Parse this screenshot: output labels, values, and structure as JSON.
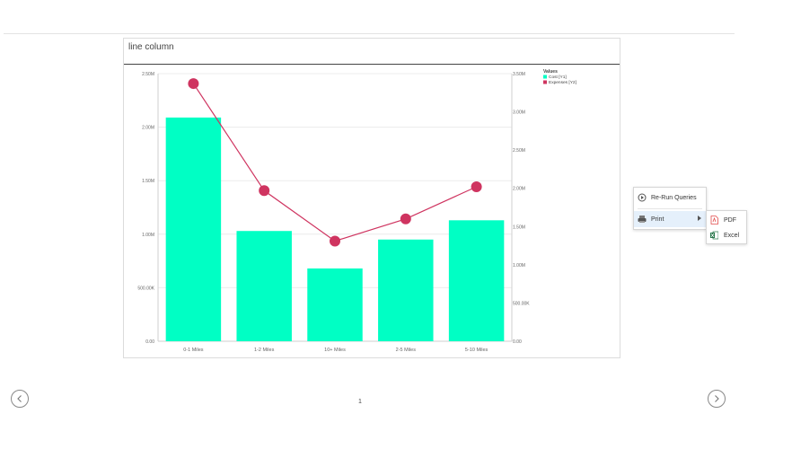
{
  "panel": {
    "title": "line column"
  },
  "menu": {
    "rerun_label": "Re-Run Queries",
    "print_label": "Print",
    "submenu": {
      "pdf_label": "PDF",
      "excel_label": "Excel"
    }
  },
  "pager": {
    "page": "1"
  },
  "colors": {
    "bar": "#00ffc4",
    "line": "#cf3460",
    "pdf": "#e24b4b",
    "excel": "#1f7244"
  },
  "chart_data": {
    "type": "bar",
    "categories": [
      "0-1 Miles",
      "1-2 Miles",
      "10+ Miles",
      "2-5 Miles",
      "5-10 Miles"
    ],
    "series": [
      {
        "name": "Cost [Y1]",
        "type": "bar",
        "axis": "left",
        "values": [
          2090000,
          1030000,
          680000,
          950000,
          1130000
        ]
      },
      {
        "name": "Expenses [Y2]",
        "type": "line",
        "axis": "right",
        "values": [
          3370000,
          1970000,
          1310000,
          1600000,
          2020000
        ]
      }
    ],
    "y_left": {
      "range": [
        0,
        2500000
      ],
      "ticks": [
        "0.00",
        "500.00K",
        "1.00M",
        "1.50M",
        "2.00M",
        "2.50M"
      ]
    },
    "y_right": {
      "range": [
        0,
        3500000
      ],
      "ticks": [
        "0.00",
        "500.00K",
        "1.00M",
        "1.50M",
        "2.00M",
        "2.50M",
        "3.00M",
        "3.50M"
      ]
    },
    "legend": {
      "title": "Values",
      "placement": "top-right"
    },
    "grid": true
  }
}
